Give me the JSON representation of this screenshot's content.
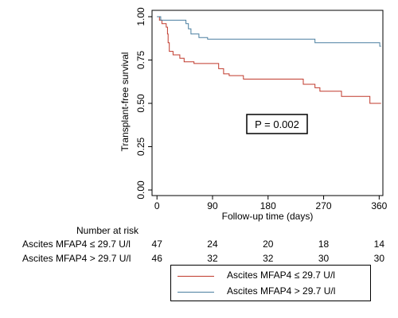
{
  "chart_data": {
    "type": "line",
    "step": true,
    "xlabel": "Follow-up time (days)",
    "ylabel": "Transplant-free survival",
    "x_ticks": [
      0,
      90,
      180,
      270,
      360
    ],
    "y_ticks": [
      "0.00",
      "0.25",
      "0.50",
      "0.75",
      "1.00"
    ],
    "xlim": [
      -8,
      366
    ],
    "ylim": [
      0,
      1
    ],
    "grid": false,
    "annotation": "P = 0.002",
    "series": [
      {
        "name": "Ascites MFAP4 ≤ 29.7 U/l",
        "color": "#c0392b",
        "points": [
          [
            0,
            1.0
          ],
          [
            4,
            0.98
          ],
          [
            8,
            0.96
          ],
          [
            15,
            0.94
          ],
          [
            17,
            0.9
          ],
          [
            18,
            0.85
          ],
          [
            20,
            0.8
          ],
          [
            26,
            0.78
          ],
          [
            37,
            0.76
          ],
          [
            44,
            0.74
          ],
          [
            60,
            0.73
          ],
          [
            100,
            0.7
          ],
          [
            108,
            0.67
          ],
          [
            117,
            0.66
          ],
          [
            140,
            0.64
          ],
          [
            237,
            0.61
          ],
          [
            256,
            0.59
          ],
          [
            264,
            0.57
          ],
          [
            299,
            0.54
          ],
          [
            345,
            0.5
          ],
          [
            363,
            0.5
          ]
        ]
      },
      {
        "name": "Ascites MFAP4 > 29.7 U/l",
        "color": "#4a7fa0",
        "points": [
          [
            0,
            1.0
          ],
          [
            6,
            0.98
          ],
          [
            47,
            0.96
          ],
          [
            51,
            0.93
          ],
          [
            55,
            0.9
          ],
          [
            68,
            0.88
          ],
          [
            82,
            0.87
          ],
          [
            256,
            0.85
          ],
          [
            360,
            0.85
          ],
          [
            361,
            0.83
          ],
          [
            363,
            0.83
          ]
        ]
      }
    ],
    "legend_placement": "bottom-right"
  },
  "risk_table": {
    "title": "Number at risk",
    "rows": [
      {
        "label": "Ascites MFAP4 ≤ 29.7 U/l",
        "values": [
          "47",
          "24",
          "20",
          "18",
          "14"
        ]
      },
      {
        "label": "Ascites MFAP4 > 29.7 U/l",
        "values": [
          "46",
          "32",
          "32",
          "30",
          "30"
        ]
      }
    ]
  },
  "legend": {
    "items": [
      {
        "label": "Ascites MFAP4 ≤ 29.7 U/l",
        "color": "#c0392b"
      },
      {
        "label": "Ascites MFAP4 > 29.7 U/l",
        "color": "#4a7fa0"
      }
    ]
  }
}
